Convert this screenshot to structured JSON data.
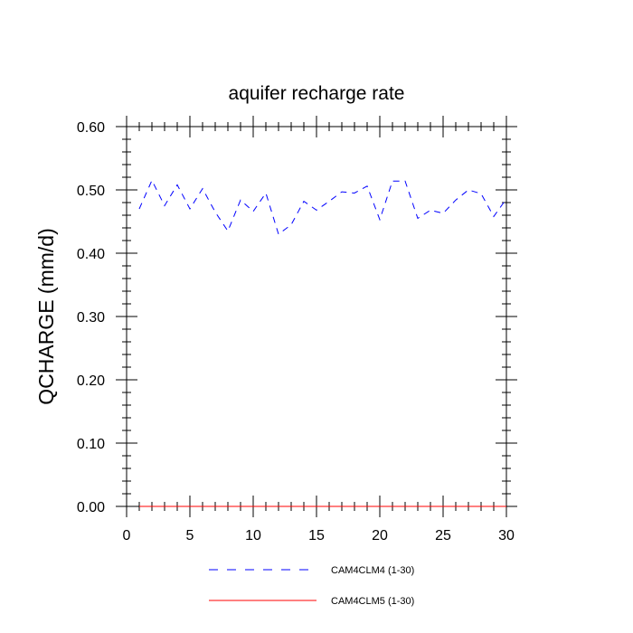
{
  "chart_data": {
    "type": "line",
    "title": "aquifer recharge rate",
    "xlabel": "",
    "ylabel": "QCHARGE  (mm/d)",
    "xlim": [
      0,
      30
    ],
    "ylim": [
      0,
      0.6
    ],
    "xticks": [
      0,
      5,
      10,
      15,
      20,
      25,
      30
    ],
    "yticks": [
      0.0,
      0.1,
      0.2,
      0.3,
      0.4,
      0.5,
      0.6
    ],
    "ytick_labels": [
      "0.00",
      "0.10",
      "0.20",
      "0.30",
      "0.40",
      "0.50",
      "0.60"
    ],
    "x": [
      1,
      2,
      3,
      4,
      5,
      6,
      7,
      8,
      9,
      10,
      11,
      12,
      13,
      14,
      15,
      16,
      17,
      18,
      19,
      20,
      21,
      22,
      23,
      24,
      25,
      26,
      27,
      28,
      29,
      30
    ],
    "series": [
      {
        "name": "CAM4CLM4 (1-30)",
        "color": "#0000ff",
        "dash": "dashed",
        "values": [
          0.47,
          0.515,
          0.475,
          0.508,
          0.47,
          0.502,
          0.465,
          0.435,
          0.484,
          0.466,
          0.495,
          0.43,
          0.445,
          0.482,
          0.468,
          0.482,
          0.497,
          0.495,
          0.506,
          0.453,
          0.514,
          0.514,
          0.455,
          0.468,
          0.463,
          0.484,
          0.5,
          0.494,
          0.458,
          0.486
        ]
      },
      {
        "name": "CAM4CLM5 (1-30)",
        "color": "#ff0000",
        "dash": "solid",
        "values": [
          0,
          0,
          0,
          0,
          0,
          0,
          0,
          0,
          0,
          0,
          0,
          0,
          0,
          0,
          0,
          0,
          0,
          0,
          0,
          0,
          0,
          0,
          0,
          0,
          0,
          0,
          0,
          0,
          0,
          0
        ]
      }
    ],
    "grid": false,
    "legend_position": "bottom"
  }
}
